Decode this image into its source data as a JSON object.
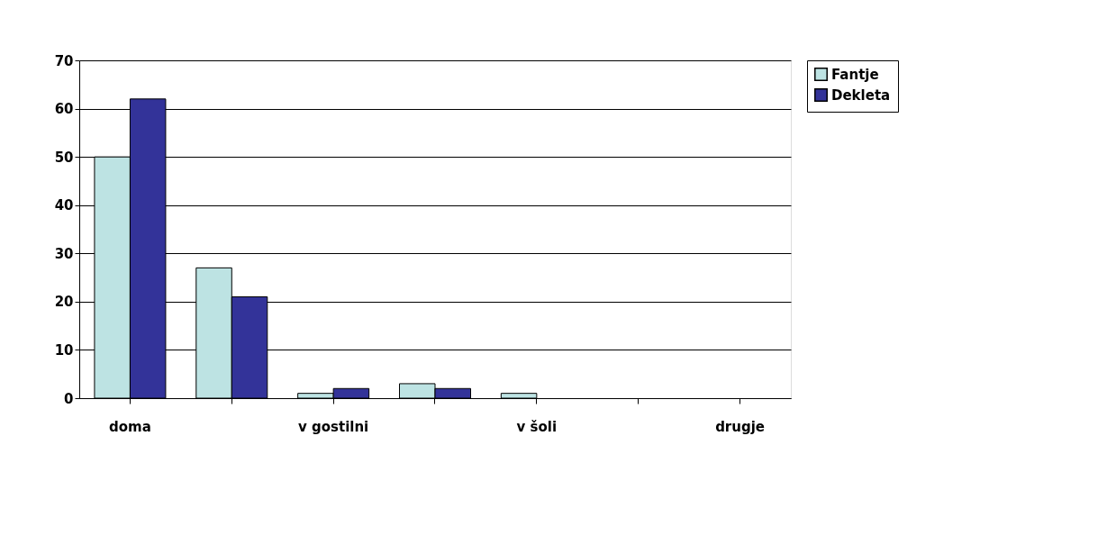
{
  "chart_data": {
    "type": "bar",
    "categories": [
      "doma",
      null,
      "v gostilni",
      null,
      "v šoli",
      null,
      "drugje"
    ],
    "series": [
      {
        "name": "Fantje",
        "color": "#bde3e3",
        "values": [
          50,
          27,
          1,
          3,
          1,
          0,
          0
        ]
      },
      {
        "name": "Dekleta",
        "color": "#333399",
        "values": [
          62,
          21,
          2,
          2,
          0,
          0,
          0
        ]
      }
    ],
    "ylim": [
      0,
      70
    ],
    "yticks": [
      0,
      10,
      20,
      30,
      40,
      50,
      60,
      70
    ],
    "grid": "y",
    "legend": "right"
  }
}
